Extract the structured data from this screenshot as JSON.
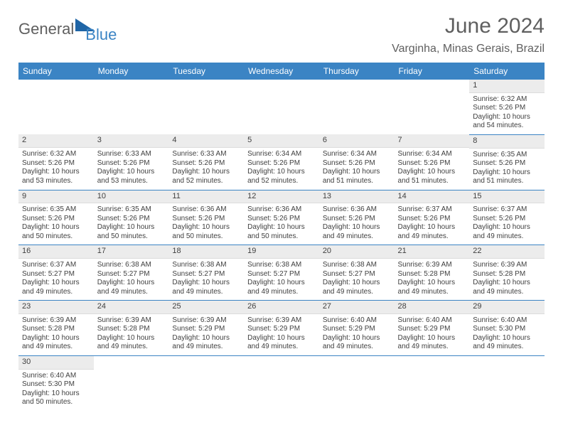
{
  "logo": {
    "part1": "General",
    "part2": "Blue"
  },
  "title": "June 2024",
  "location": "Varginha, Minas Gerais, Brazil",
  "colors": {
    "header_bg": "#3b84c4",
    "header_text": "#ffffff",
    "daynum_bg": "#ececec",
    "border": "#3b84c4",
    "text": "#404040",
    "title_text": "#5f5f5f"
  },
  "weekdays": [
    "Sunday",
    "Monday",
    "Tuesday",
    "Wednesday",
    "Thursday",
    "Friday",
    "Saturday"
  ],
  "weeks": [
    [
      null,
      null,
      null,
      null,
      null,
      null,
      {
        "n": "1",
        "sunrise": "6:32 AM",
        "sunset": "5:26 PM",
        "daylight": "10 hours and 54 minutes."
      }
    ],
    [
      {
        "n": "2",
        "sunrise": "6:32 AM",
        "sunset": "5:26 PM",
        "daylight": "10 hours and 53 minutes."
      },
      {
        "n": "3",
        "sunrise": "6:33 AM",
        "sunset": "5:26 PM",
        "daylight": "10 hours and 53 minutes."
      },
      {
        "n": "4",
        "sunrise": "6:33 AM",
        "sunset": "5:26 PM",
        "daylight": "10 hours and 52 minutes."
      },
      {
        "n": "5",
        "sunrise": "6:34 AM",
        "sunset": "5:26 PM",
        "daylight": "10 hours and 52 minutes."
      },
      {
        "n": "6",
        "sunrise": "6:34 AM",
        "sunset": "5:26 PM",
        "daylight": "10 hours and 51 minutes."
      },
      {
        "n": "7",
        "sunrise": "6:34 AM",
        "sunset": "5:26 PM",
        "daylight": "10 hours and 51 minutes."
      },
      {
        "n": "8",
        "sunrise": "6:35 AM",
        "sunset": "5:26 PM",
        "daylight": "10 hours and 51 minutes."
      }
    ],
    [
      {
        "n": "9",
        "sunrise": "6:35 AM",
        "sunset": "5:26 PM",
        "daylight": "10 hours and 50 minutes."
      },
      {
        "n": "10",
        "sunrise": "6:35 AM",
        "sunset": "5:26 PM",
        "daylight": "10 hours and 50 minutes."
      },
      {
        "n": "11",
        "sunrise": "6:36 AM",
        "sunset": "5:26 PM",
        "daylight": "10 hours and 50 minutes."
      },
      {
        "n": "12",
        "sunrise": "6:36 AM",
        "sunset": "5:26 PM",
        "daylight": "10 hours and 50 minutes."
      },
      {
        "n": "13",
        "sunrise": "6:36 AM",
        "sunset": "5:26 PM",
        "daylight": "10 hours and 49 minutes."
      },
      {
        "n": "14",
        "sunrise": "6:37 AM",
        "sunset": "5:26 PM",
        "daylight": "10 hours and 49 minutes."
      },
      {
        "n": "15",
        "sunrise": "6:37 AM",
        "sunset": "5:26 PM",
        "daylight": "10 hours and 49 minutes."
      }
    ],
    [
      {
        "n": "16",
        "sunrise": "6:37 AM",
        "sunset": "5:27 PM",
        "daylight": "10 hours and 49 minutes."
      },
      {
        "n": "17",
        "sunrise": "6:38 AM",
        "sunset": "5:27 PM",
        "daylight": "10 hours and 49 minutes."
      },
      {
        "n": "18",
        "sunrise": "6:38 AM",
        "sunset": "5:27 PM",
        "daylight": "10 hours and 49 minutes."
      },
      {
        "n": "19",
        "sunrise": "6:38 AM",
        "sunset": "5:27 PM",
        "daylight": "10 hours and 49 minutes."
      },
      {
        "n": "20",
        "sunrise": "6:38 AM",
        "sunset": "5:27 PM",
        "daylight": "10 hours and 49 minutes."
      },
      {
        "n": "21",
        "sunrise": "6:39 AM",
        "sunset": "5:28 PM",
        "daylight": "10 hours and 49 minutes."
      },
      {
        "n": "22",
        "sunrise": "6:39 AM",
        "sunset": "5:28 PM",
        "daylight": "10 hours and 49 minutes."
      }
    ],
    [
      {
        "n": "23",
        "sunrise": "6:39 AM",
        "sunset": "5:28 PM",
        "daylight": "10 hours and 49 minutes."
      },
      {
        "n": "24",
        "sunrise": "6:39 AM",
        "sunset": "5:28 PM",
        "daylight": "10 hours and 49 minutes."
      },
      {
        "n": "25",
        "sunrise": "6:39 AM",
        "sunset": "5:29 PM",
        "daylight": "10 hours and 49 minutes."
      },
      {
        "n": "26",
        "sunrise": "6:39 AM",
        "sunset": "5:29 PM",
        "daylight": "10 hours and 49 minutes."
      },
      {
        "n": "27",
        "sunrise": "6:40 AM",
        "sunset": "5:29 PM",
        "daylight": "10 hours and 49 minutes."
      },
      {
        "n": "28",
        "sunrise": "6:40 AM",
        "sunset": "5:29 PM",
        "daylight": "10 hours and 49 minutes."
      },
      {
        "n": "29",
        "sunrise": "6:40 AM",
        "sunset": "5:30 PM",
        "daylight": "10 hours and 49 minutes."
      }
    ],
    [
      {
        "n": "30",
        "sunrise": "6:40 AM",
        "sunset": "5:30 PM",
        "daylight": "10 hours and 50 minutes."
      },
      null,
      null,
      null,
      null,
      null,
      null
    ]
  ],
  "labels": {
    "sunrise": "Sunrise: ",
    "sunset": "Sunset: ",
    "daylight": "Daylight: "
  }
}
